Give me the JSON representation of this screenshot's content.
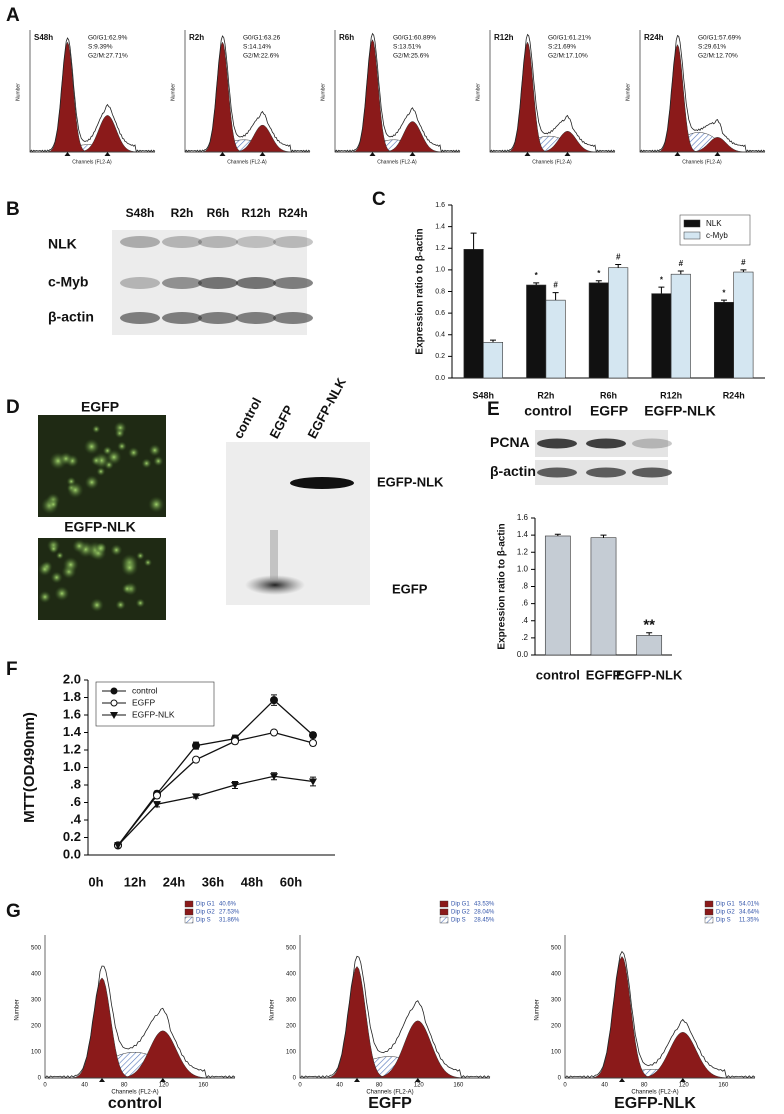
{
  "panel_labels": [
    "A",
    "B",
    "C",
    "D",
    "E",
    "F",
    "G"
  ],
  "panel_a": {
    "axis_y": "Number",
    "axis_x": "Channels (FL2-A)",
    "plots": [
      {
        "title": "S48h",
        "stats": [
          "G0/G1:62.9%",
          "S:9.39%",
          "G2/M:27.71%"
        ]
      },
      {
        "title": "R2h",
        "stats": [
          "G0/G1:63.26",
          "S:14.14%",
          "G2/M:22.6%"
        ]
      },
      {
        "title": "R6h",
        "stats": [
          "G0/G1:60.89%",
          "S:13.51%",
          "G2/M:25.6%"
        ]
      },
      {
        "title": "R12h",
        "stats": [
          "G0/G1:61.21%",
          "S:21.69%",
          "G2/M:17.10%"
        ]
      },
      {
        "title": "R24h",
        "stats": [
          "G0/G1:57.69%",
          "S:29.61%",
          "G2/M:12.70%"
        ]
      }
    ]
  },
  "panel_b": {
    "columns": [
      "S48h",
      "R2h",
      "R6h",
      "R12h",
      "R24h"
    ],
    "rows": [
      "NLK",
      "c-Myb",
      "β-actin"
    ]
  },
  "panel_d": {
    "image_labels": [
      "EGFP",
      "EGFP-NLK"
    ],
    "columns": [
      "control",
      "EGFP",
      "EGFP-NLK"
    ],
    "bands": [
      "EGFP-NLK",
      "EGFP"
    ]
  },
  "panel_e": {
    "columns": [
      "control",
      "EGFP",
      "EGFP-NLK"
    ],
    "rows": [
      "PCNA",
      "β-actin"
    ]
  },
  "panel_g": {
    "axis_y": "Number",
    "axis_x": "Channels (FL2-A)",
    "yticks": [
      "0",
      "100",
      "200",
      "300",
      "400",
      "500"
    ],
    "xticks": [
      "0",
      "40",
      "80",
      "120",
      "160"
    ],
    "plots": [
      {
        "title": "control",
        "legend": [
          [
            "Dip G1",
            "40.6%"
          ],
          [
            "Dip G2",
            "27.53%"
          ],
          [
            "Dip S",
            "31.86%"
          ]
        ]
      },
      {
        "title": "EGFP",
        "legend": [
          [
            "Dip G1",
            "43.53%"
          ],
          [
            "Dip G2",
            "28.04%"
          ],
          [
            "Dip S",
            "28.45%"
          ]
        ]
      },
      {
        "title": "EGFP-NLK",
        "legend": [
          [
            "Dip G1",
            "54.01%"
          ],
          [
            "Dip G2",
            "34.64%"
          ],
          [
            "Dip S",
            "11.35%"
          ]
        ]
      }
    ]
  },
  "chart_data": [
    {
      "type": "bar",
      "ylabel": "Expression ratio to β-actin",
      "categories": [
        "S48h",
        "R2h",
        "R6h",
        "R12h",
        "R24h"
      ],
      "series": [
        {
          "name": "NLK",
          "color": "#111111",
          "values": [
            1.19,
            0.86,
            0.88,
            0.78,
            0.7
          ],
          "errors": [
            0.15,
            0.02,
            0.02,
            0.06,
            0.02
          ],
          "significance": [
            null,
            "*",
            "*",
            "*",
            "*"
          ]
        },
        {
          "name": "c-Myb",
          "color": "#d4e6f1",
          "values": [
            0.33,
            0.72,
            1.02,
            0.96,
            0.98
          ],
          "errors": [
            0.02,
            0.07,
            0.03,
            0.03,
            0.02
          ],
          "significance": [
            null,
            "#",
            "#",
            "#",
            "#"
          ]
        }
      ],
      "ylim": [
        0,
        1.6
      ],
      "yticks": [
        {
          "value": 0,
          "label": "0.0"
        },
        0.2,
        0.4,
        0.6,
        0.8,
        {
          "value": 1,
          "label": "1.0"
        },
        1.2,
        1.4,
        1.6
      ],
      "legend": "upper right"
    },
    {
      "type": "bar",
      "ylabel": "Expression ratio to β-actin",
      "categories": [
        "control",
        "EGFP",
        "EGFP-NLK"
      ],
      "values": [
        1.39,
        1.37,
        0.23
      ],
      "errors": [
        0.02,
        0.03,
        0.03
      ],
      "significance": [
        null,
        null,
        "**"
      ],
      "color": "#c5ccd4",
      "ylim": [
        0,
        1.6
      ],
      "yticks": [
        {
          "value": 0,
          "label": "0.0"
        },
        {
          "value": 0.2,
          "label": ".2"
        },
        {
          "value": 0.4,
          "label": ".4"
        },
        {
          "value": 0.6,
          "label": ".6"
        },
        {
          "value": 0.8,
          "label": ".8"
        },
        {
          "value": 1,
          "label": "1.0"
        },
        1.2,
        1.4,
        1.6
      ]
    },
    {
      "type": "line",
      "ylabel": "MTT(OD490nm)",
      "categories": [
        "0h",
        "12h",
        "24h",
        "36h",
        "48h",
        "60h"
      ],
      "series": [
        {
          "name": "control",
          "color": "#111111",
          "marker": "filled-circle",
          "values": [
            0.11,
            0.7,
            1.25,
            1.33,
            1.77,
            1.37
          ],
          "errors": [
            0.03,
            0.03,
            0.04,
            0.04,
            0.06,
            0.03
          ]
        },
        {
          "name": "EGFP",
          "color": "#111111",
          "marker": "open-circle",
          "values": [
            0.11,
            0.68,
            1.09,
            1.3,
            1.4,
            1.28
          ],
          "errors": [
            0.03,
            0.03,
            0.02,
            0.03,
            0.02,
            0.03
          ]
        },
        {
          "name": "EGFP-NLK",
          "color": "#111111",
          "marker": "triangle",
          "values": [
            0.11,
            0.58,
            0.67,
            0.8,
            0.9,
            0.84
          ],
          "errors": [
            0.03,
            0.03,
            0.02,
            0.04,
            0.04,
            0.05
          ]
        }
      ],
      "ylim": [
        0,
        2
      ],
      "yticks": [
        {
          "value": 0,
          "label": "0.0"
        },
        0.2,
        {
          "value": 0.4,
          "label": ".4"
        },
        {
          "value": 0.6,
          "label": ".6"
        },
        {
          "value": 0.8,
          "label": ".8"
        },
        {
          "value": 1,
          "label": "1.0"
        },
        1.2,
        1.4,
        1.6,
        1.8,
        {
          "value": 2,
          "label": "2.0"
        }
      ],
      "legend": "upper left"
    }
  ]
}
